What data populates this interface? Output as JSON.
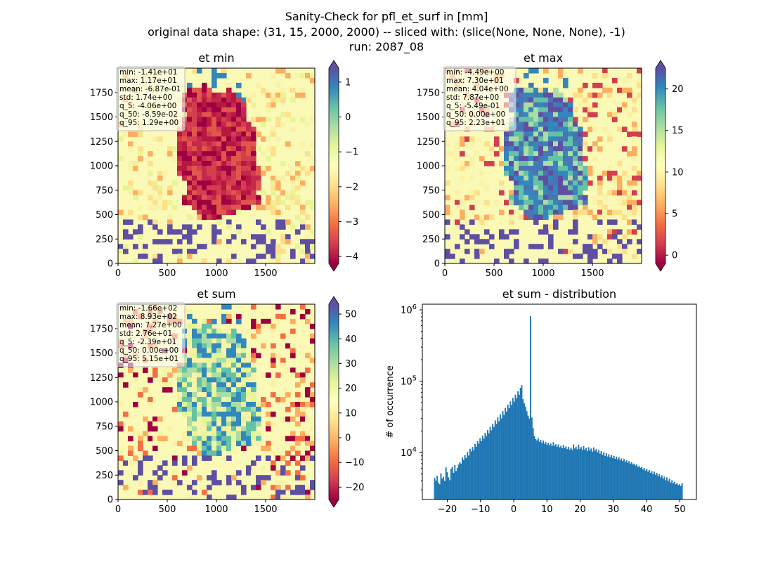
{
  "figure": {
    "title_lines": [
      "Sanity-Check for pfl_et_surf in [mm]",
      "original data shape: (31, 15, 2000, 2000) -- sliced with: (slice(None, None, None), -1)",
      "run: 2087_08"
    ]
  },
  "colors": {
    "spectral": [
      "#9e0142",
      "#d53e4f",
      "#f46d43",
      "#fdae61",
      "#fee08b",
      "#ffffbf",
      "#e6f598",
      "#abdda4",
      "#66c2a5",
      "#3288bd",
      "#5e4fa2"
    ],
    "hist_bar": "#1f77b4"
  },
  "chart_data": [
    {
      "type": "heatmap",
      "title": "et min",
      "xlim": [
        0,
        2000
      ],
      "ylim": [
        0,
        2000
      ],
      "x_ticks": [
        0,
        500,
        1000,
        1500
      ],
      "y_ticks": [
        0,
        250,
        500,
        750,
        1000,
        1250,
        1500,
        1750
      ],
      "colorbar": {
        "range": [
          -4.2,
          1.4
        ],
        "ticks": [
          1,
          0,
          -1,
          -2,
          -3,
          -4
        ],
        "extend": "both"
      },
      "stats_lines": [
        "min: -1.41e+01",
        "max: 1.17e+01",
        "mean: -6.87e-01",
        "std: 1.74e+00",
        "q_5: -4.06e+00",
        "q_50: -8.59e-02",
        "q_95: 1.29e+00"
      ],
      "legend_position": "top-left"
    },
    {
      "type": "heatmap",
      "title": "et max",
      "xlim": [
        0,
        2000
      ],
      "ylim": [
        0,
        2000
      ],
      "x_ticks": [
        0,
        500,
        1000,
        1500
      ],
      "y_ticks": [
        0,
        250,
        500,
        750,
        1000,
        1250,
        1500,
        1750
      ],
      "colorbar": {
        "range": [
          -1,
          22.5
        ],
        "ticks": [
          20,
          15,
          10,
          5,
          0
        ],
        "extend": "both"
      },
      "stats_lines": [
        "min: -4.49e+00",
        "max: 7.30e+01",
        "mean: 4.04e+00",
        "std: 7.87e+00",
        "q_5: -5.49e-01",
        "q_50: 0.00e+00",
        "q_95: 2.23e+01"
      ],
      "legend_position": "top-left"
    },
    {
      "type": "heatmap",
      "title": "et sum",
      "xlim": [
        0,
        2000
      ],
      "ylim": [
        0,
        2000
      ],
      "x_ticks": [
        0,
        500,
        1000,
        1500
      ],
      "y_ticks": [
        0,
        250,
        500,
        750,
        1000,
        1250,
        1500,
        1750
      ],
      "colorbar": {
        "range": [
          -25,
          54
        ],
        "ticks": [
          50,
          40,
          30,
          20,
          10,
          0,
          -10,
          -20
        ],
        "extend": "both"
      },
      "stats_lines": [
        "min: -1.66e+02",
        "max: 8.93e+02",
        "mean: 7.27e+00",
        "std: 2.76e+01",
        "q_5: -2.39e+01",
        "q_50: 0.00e+00",
        "q_95: 5.15e+01"
      ],
      "legend_position": "top-left"
    },
    {
      "type": "bar",
      "title": "et sum - distribution",
      "ylabel": "# of occurrence",
      "y_scale": "log",
      "xlim": [
        -27.5,
        55
      ],
      "ylim": [
        2200,
        1200000
      ],
      "x_ticks": [
        -20,
        -10,
        0,
        10,
        20,
        30,
        40,
        50
      ],
      "y_ticks": [
        {
          "value": 10000,
          "base": "10",
          "exp": "4"
        },
        {
          "value": 100000,
          "base": "10",
          "exp": "5"
        },
        {
          "value": 1000000,
          "base": "10",
          "exp": "6"
        }
      ],
      "bin_start": -24.0,
      "bin_width": 0.38,
      "values": [
        4400,
        4050,
        4700,
        3800,
        3600,
        5100,
        4300,
        4600,
        4000,
        6200,
        5300,
        4500,
        4100,
        5900,
        6300,
        5200,
        6700,
        5500,
        6100,
        6800,
        7300,
        7000,
        8500,
        7900,
        9200,
        8400,
        10200,
        9100,
        11300,
        10400,
        12000,
        10800,
        13200,
        12100,
        14500,
        13300,
        15800,
        14400,
        17200,
        15600,
        18900,
        17000,
        20700,
        18600,
        22900,
        20500,
        25300,
        22800,
        28200,
        25100,
        31100,
        27500,
        34200,
        30100,
        38100,
        33600,
        42200,
        37500,
        47000,
        41800,
        52100,
        46300,
        58200,
        51600,
        64800,
        57500,
        72100,
        64300,
        80500,
        88000,
        56000,
        49000,
        44000,
        38000,
        33000,
        30000,
        820000,
        31000,
        22000,
        17000,
        15500,
        14800,
        15900,
        14200,
        15100,
        13600,
        14700,
        13300,
        14100,
        12900,
        13700,
        12600,
        13400,
        12300,
        14000,
        12500,
        13100,
        12100,
        13000,
        11800,
        12400,
        11500,
        12700,
        11600,
        12200,
        11200,
        12000,
        11000,
        11700,
        10900,
        13000,
        11400,
        12100,
        11100,
        12900,
        11300,
        12000,
        10800,
        12300,
        11000,
        11600,
        10500,
        11900,
        10700,
        11400,
        10300,
        11800,
        10600,
        11200,
        10100,
        10900,
        9700,
        10500,
        9300,
        10100,
        9000,
        9800,
        8800,
        9500,
        8600,
        9200,
        8400,
        9000,
        8200,
        8800,
        8000,
        8600,
        7800,
        8300,
        7600,
        8100,
        7400,
        7800,
        7200,
        7600,
        7000,
        7300,
        6800,
        7000,
        6600,
        6800,
        6300,
        6500,
        6100,
        6300,
        5800,
        6100,
        5600,
        5900,
        5400,
        5700,
        5200,
        5500,
        5000,
        5400,
        4900,
        5200,
        4700,
        5000,
        4500,
        4800,
        4300,
        4600,
        4100,
        4500,
        4000,
        4300,
        3800,
        4100,
        3700,
        3900,
        3600,
        3700,
        3500,
        3600,
        3400,
        3700
      ]
    }
  ]
}
